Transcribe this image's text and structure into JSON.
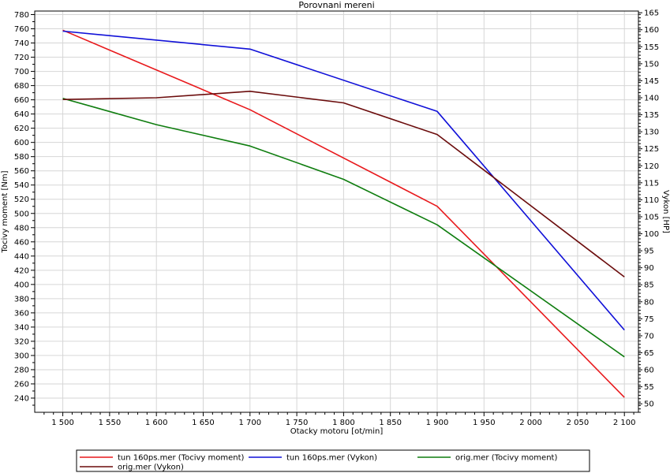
{
  "chart_data": {
    "type": "line",
    "title": "Porovnani mereni",
    "xlabel": "Otacky motoru [ot/min]",
    "ylabel": "Tocivy moment [Nm]",
    "y2label": "Vykon [HP]",
    "grid": true,
    "legend_position": "bottom",
    "xlim": [
      1470,
      2115
    ],
    "ylim": [
      220,
      785
    ],
    "y2lim": [
      47.5,
      165.5
    ],
    "x_ticks": [
      1500,
      1550,
      1600,
      1650,
      1700,
      1750,
      1800,
      1850,
      1900,
      1950,
      2000,
      2050,
      2100
    ],
    "x_tick_labels": [
      "1 500",
      "1 550",
      "1 600",
      "1 650",
      "1 700",
      "1 750",
      "1 800",
      "1 850",
      "1 900",
      "1 950",
      "2 000",
      "2 050",
      "2 100"
    ],
    "y_ticks": [
      240,
      260,
      280,
      300,
      320,
      340,
      360,
      380,
      400,
      420,
      440,
      460,
      480,
      500,
      520,
      540,
      560,
      580,
      600,
      620,
      640,
      660,
      680,
      700,
      720,
      740,
      760,
      780
    ],
    "y2_ticks": [
      50,
      55,
      60,
      65,
      70,
      75,
      80,
      85,
      90,
      95,
      100,
      105,
      110,
      115,
      120,
      125,
      130,
      135,
      140,
      145,
      150,
      155,
      160,
      165
    ],
    "series": [
      {
        "name": "tun 160ps.mer  (Tocivy moment)",
        "axis": "left",
        "color": "#e8191c",
        "x": [
          1500,
          1700,
          1900,
          2100
        ],
        "values": [
          758,
          646,
          510,
          241
        ]
      },
      {
        "name": "tun 160ps.mer  (Vykon)",
        "axis": "right",
        "color": "#1010d8",
        "x": [
          1500,
          1700,
          1900,
          2100
        ],
        "values": [
          159.6,
          154.3,
          136.0,
          71.7
        ]
      },
      {
        "name": "orig.mer  (Tocivy moment)",
        "axis": "left",
        "color": "#0f7d0f",
        "x": [
          1500,
          1600,
          1700,
          1800,
          1900,
          2100
        ],
        "values": [
          662,
          625,
          595,
          548,
          484,
          298
        ]
      },
      {
        "name": "orig.mer  (Vykon)",
        "axis": "right",
        "color": "#6b0c0c",
        "x": [
          1500,
          1600,
          1700,
          1800,
          1900,
          2100
        ],
        "values": [
          139.5,
          140.0,
          141.9,
          138.5,
          129.2,
          87.3
        ]
      }
    ]
  }
}
